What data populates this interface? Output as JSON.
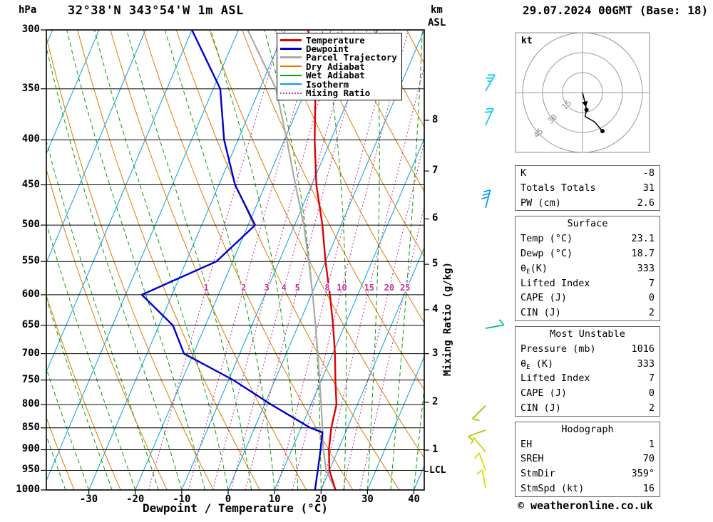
{
  "header": {
    "station": "32°38'N 343°54'W 1m ASL",
    "datetime": "29.07.2024 00GMT (Base: 18)"
  },
  "axes": {
    "pressure_unit": "hPa",
    "km_line1": "km",
    "km_line2": "ASL",
    "pressure_ticks": [
      300,
      350,
      400,
      450,
      500,
      550,
      600,
      650,
      700,
      750,
      800,
      850,
      900,
      950,
      1000
    ],
    "temp_ticks": [
      -30,
      -20,
      -10,
      0,
      10,
      20,
      30,
      40
    ],
    "km_ticks": [
      {
        "label": "1",
        "p": 901
      },
      {
        "label": "2",
        "p": 795
      },
      {
        "label": "3",
        "p": 700
      },
      {
        "label": "4",
        "p": 624
      },
      {
        "label": "5",
        "p": 554
      },
      {
        "label": "6",
        "p": 492
      },
      {
        "label": "7",
        "p": 434
      },
      {
        "label": "8",
        "p": 380
      }
    ],
    "xlabel": "Dewpoint / Temperature (°C)",
    "right_label": "Mixing Ratio (g/kg)",
    "lcl_label": "LCL"
  },
  "legend": [
    {
      "label": "Temperature",
      "color": "#e10000",
      "style": "solid",
      "thick": true
    },
    {
      "label": "Dewpoint",
      "color": "#0000cc",
      "style": "solid",
      "thick": true
    },
    {
      "label": "Parcel Trajectory",
      "color": "#aaaaaa",
      "style": "solid",
      "thick": true
    },
    {
      "label": "Dry Adiabat",
      "color": "#e07b00",
      "style": "solid",
      "thick": false
    },
    {
      "label": "Wet Adiabat",
      "color": "#00a000",
      "style": "solid",
      "thick": false
    },
    {
      "label": "Isotherm",
      "color": "#00a0e0",
      "style": "solid",
      "thick": false
    },
    {
      "label": "Mixing Ratio",
      "color": "#c832a0",
      "style": "dotted",
      "thick": false
    }
  ],
  "chart_data": {
    "type": "skewt-log-p",
    "pressure_axis_hpa": [
      300,
      1000
    ],
    "temp_axis_c": [
      -30,
      40
    ],
    "skew": 0.4256,
    "isotherms_c": {
      "min": -90,
      "max": 40,
      "step": 10
    },
    "dry_adiabats_k": {
      "min": 230,
      "max": 390,
      "step": 10
    },
    "wet_adiabats_c": {
      "min": -60,
      "max": 50,
      "step": 5
    },
    "mixing_ratio_lines_gkg": [
      1,
      2,
      3,
      4,
      5,
      8,
      10,
      15,
      20,
      25
    ],
    "mixing_label_pressure_hpa": 590,
    "lcl_pressure_hpa": 953,
    "series": [
      {
        "name": "Temperature",
        "color": "#e10000",
        "width": 2.4,
        "p": [
          1000,
          950,
          900,
          850,
          800,
          750,
          700,
          650,
          600,
          550,
          500,
          450,
          400,
          350,
          300
        ],
        "t": [
          23.1,
          20.0,
          18.0,
          16.5,
          15.5,
          13.0,
          10.5,
          7.5,
          4.0,
          0.0,
          -4.0,
          -9.0,
          -13.5,
          -18.0,
          -25.0
        ]
      },
      {
        "name": "Dewpoint",
        "color": "#0000cc",
        "width": 2.4,
        "p": [
          1000,
          950,
          900,
          860,
          850,
          800,
          750,
          700,
          650,
          600,
          550,
          500,
          450,
          400,
          350,
          300
        ],
        "t": [
          18.7,
          17.5,
          16.2,
          15.0,
          12.0,
          1.5,
          -9.0,
          -22.0,
          -27.0,
          -36.5,
          -23.5,
          -18.5,
          -26.5,
          -33.0,
          -38.5,
          -50.0
        ]
      },
      {
        "name": "Parcel Trajectory",
        "color": "#aaaaaa",
        "width": 2.2,
        "p": [
          1000,
          950,
          900,
          850,
          800,
          750,
          700,
          650,
          600,
          550,
          500,
          450,
          400,
          350,
          300
        ],
        "t": [
          23.1,
          19.3,
          16.8,
          14.6,
          12.2,
          9.6,
          6.8,
          3.7,
          0.3,
          -3.6,
          -8.0,
          -13.5,
          -19.5,
          -26.5,
          -38.0
        ]
      }
    ],
    "field_colors": {
      "dry_adiabat": "#e07b00",
      "wet_adiabat": "#00a000",
      "isotherm": "#00a0e0",
      "mixing_ratio": "#c832a0",
      "grid": "#000000"
    }
  },
  "wind_barbs": [
    {
      "p": 352,
      "dir": 30,
      "spd": 25,
      "color": "#00c8ee"
    },
    {
      "p": 385,
      "dir": 25,
      "spd": 20,
      "color": "#00c8ee"
    },
    {
      "p": 478,
      "dir": 15,
      "spd": 30,
      "color": "#00a0e8"
    },
    {
      "p": 655,
      "dir": 80,
      "spd": 10,
      "color": "#00bb88"
    },
    {
      "p": 802,
      "dir": 225,
      "spd": 10,
      "color": "#88cc00"
    },
    {
      "p": 855,
      "dir": 250,
      "spd": 8,
      "color": "#aacc00"
    },
    {
      "p": 905,
      "dir": 320,
      "spd": 10,
      "color": "#d0d000"
    },
    {
      "p": 950,
      "dir": 340,
      "spd": 12,
      "color": "#d8d800"
    },
    {
      "p": 995,
      "dir": 350,
      "spd": 10,
      "color": "#d8d800"
    }
  ],
  "hodograph": {
    "unit_label": "kt",
    "rings_kt": [
      15,
      30,
      45
    ],
    "trace_kt": [
      [
        0,
        0
      ],
      [
        2,
        -8
      ],
      [
        3,
        -13
      ],
      [
        2,
        -18
      ],
      [
        9,
        -22
      ],
      [
        15,
        -29
      ]
    ],
    "dots_kt": [
      [
        3,
        -13
      ],
      [
        15,
        -29
      ]
    ],
    "arrow_index": 2
  },
  "tables": [
    {
      "rows": [
        {
          "label": "K",
          "value": "-8"
        },
        {
          "label": "Totals Totals",
          "value": "31"
        },
        {
          "label": "PW (cm)",
          "value": "2.6"
        }
      ]
    },
    {
      "title": "Surface",
      "rows": [
        {
          "label": "Temp (°C)",
          "value": "23.1"
        },
        {
          "label": "Dewp (°C)",
          "value": "18.7"
        },
        {
          "parts": [
            {
              "t": "θ"
            },
            {
              "t": "E",
              "sub": true
            },
            {
              "t": "(K)"
            }
          ],
          "value": "333"
        },
        {
          "label": "Lifted Index",
          "value": "7"
        },
        {
          "label": "CAPE (J)",
          "value": "0"
        },
        {
          "label": "CIN (J)",
          "value": "2"
        }
      ]
    },
    {
      "title": "Most Unstable",
      "rows": [
        {
          "label": "Pressure (mb)",
          "value": "1016"
        },
        {
          "parts": [
            {
              "t": "θ"
            },
            {
              "t": "E",
              "sub": true
            },
            {
              "t": " (K)"
            }
          ],
          "value": "333"
        },
        {
          "label": "Lifted Index",
          "value": "7"
        },
        {
          "label": "CAPE (J)",
          "value": "0"
        },
        {
          "label": "CIN (J)",
          "value": "2"
        }
      ]
    },
    {
      "title": "Hodograph",
      "rows": [
        {
          "label": "EH",
          "value": "1"
        },
        {
          "label": "SREH",
          "value": "70"
        },
        {
          "label": "StmDir",
          "value": "359°"
        },
        {
          "label": "StmSpd (kt)",
          "value": "16"
        }
      ]
    }
  ],
  "footer": {
    "copyright": "© weatheronline.co.uk"
  }
}
